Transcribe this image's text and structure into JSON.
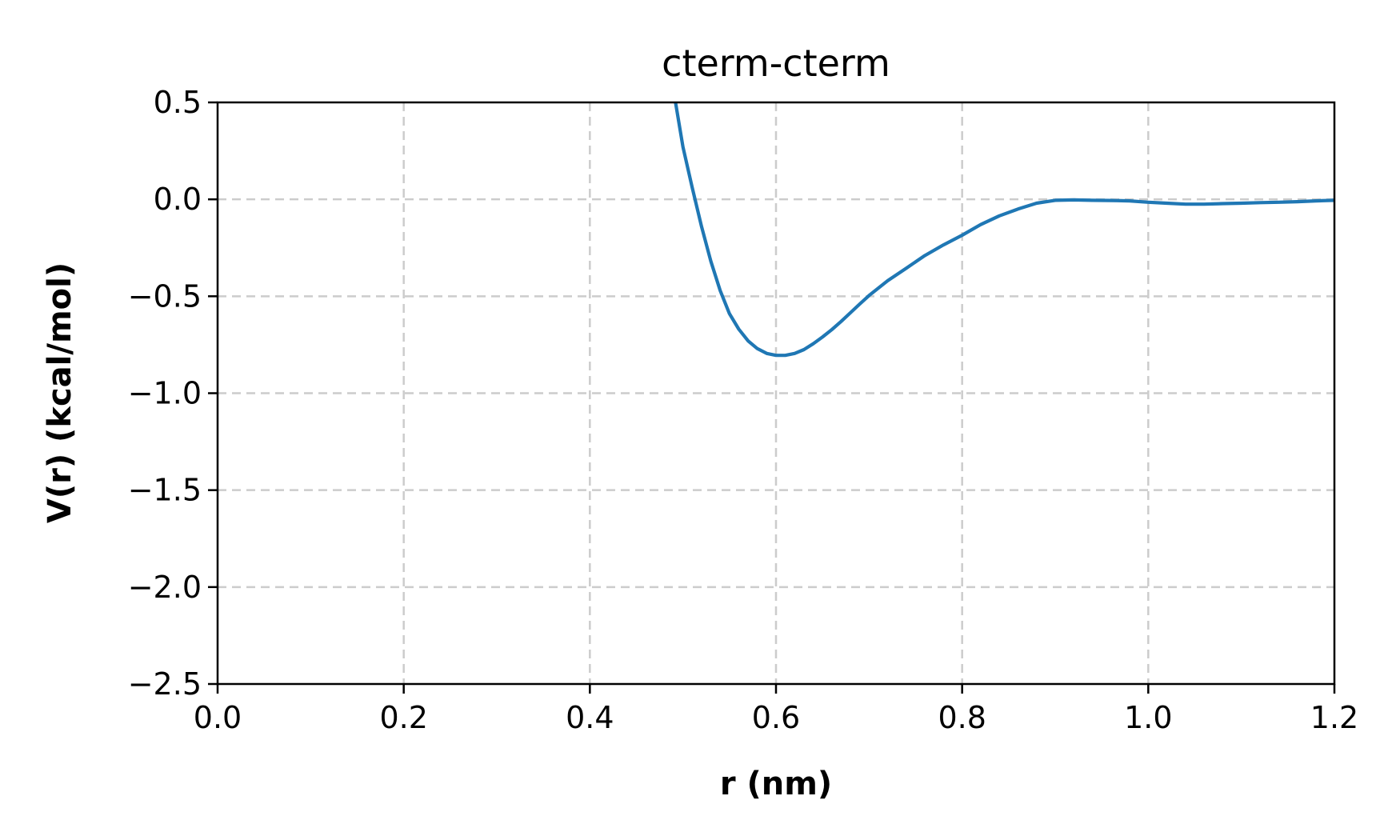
{
  "chart_data": {
    "type": "line",
    "title": "cterm-cterm",
    "xlabel": "r (nm)",
    "ylabel": "V(r) (kcal/mol)",
    "xlim": [
      0.0,
      1.2
    ],
    "ylim": [
      -2.5,
      0.5
    ],
    "xticks": [
      0.0,
      0.2,
      0.4,
      0.6,
      0.8,
      1.0,
      1.2
    ],
    "xtick_labels": [
      "0.0",
      "0.2",
      "0.4",
      "0.6",
      "0.8",
      "1.0",
      "1.2"
    ],
    "yticks": [
      0.5,
      0.0,
      -0.5,
      -1.0,
      -1.5,
      -2.0,
      -2.5
    ],
    "ytick_labels": [
      "0.5",
      "0.0",
      "−0.5",
      "−1.0",
      "−1.5",
      "−2.0",
      "−2.5"
    ],
    "grid": true,
    "series": [
      {
        "color": "#1f77b4",
        "x": [
          0.492,
          0.5,
          0.51,
          0.52,
          0.53,
          0.54,
          0.55,
          0.56,
          0.57,
          0.58,
          0.59,
          0.6,
          0.61,
          0.62,
          0.63,
          0.64,
          0.65,
          0.66,
          0.67,
          0.68,
          0.69,
          0.7,
          0.72,
          0.74,
          0.76,
          0.78,
          0.8,
          0.82,
          0.84,
          0.86,
          0.88,
          0.9,
          0.92,
          0.94,
          0.96,
          0.98,
          1.0,
          1.02,
          1.04,
          1.06,
          1.08,
          1.1,
          1.12,
          1.14,
          1.16,
          1.18,
          1.2
        ],
        "y": [
          0.5,
          0.27,
          0.06,
          -0.14,
          -0.32,
          -0.47,
          -0.59,
          -0.67,
          -0.73,
          -0.77,
          -0.795,
          -0.805,
          -0.805,
          -0.795,
          -0.775,
          -0.745,
          -0.71,
          -0.672,
          -0.63,
          -0.585,
          -0.54,
          -0.496,
          -0.42,
          -0.355,
          -0.29,
          -0.235,
          -0.185,
          -0.13,
          -0.085,
          -0.05,
          -0.02,
          -0.005,
          -0.003,
          -0.005,
          -0.006,
          -0.008,
          -0.015,
          -0.02,
          -0.025,
          -0.025,
          -0.022,
          -0.02,
          -0.017,
          -0.015,
          -0.012,
          -0.008,
          -0.005
        ]
      }
    ]
  }
}
